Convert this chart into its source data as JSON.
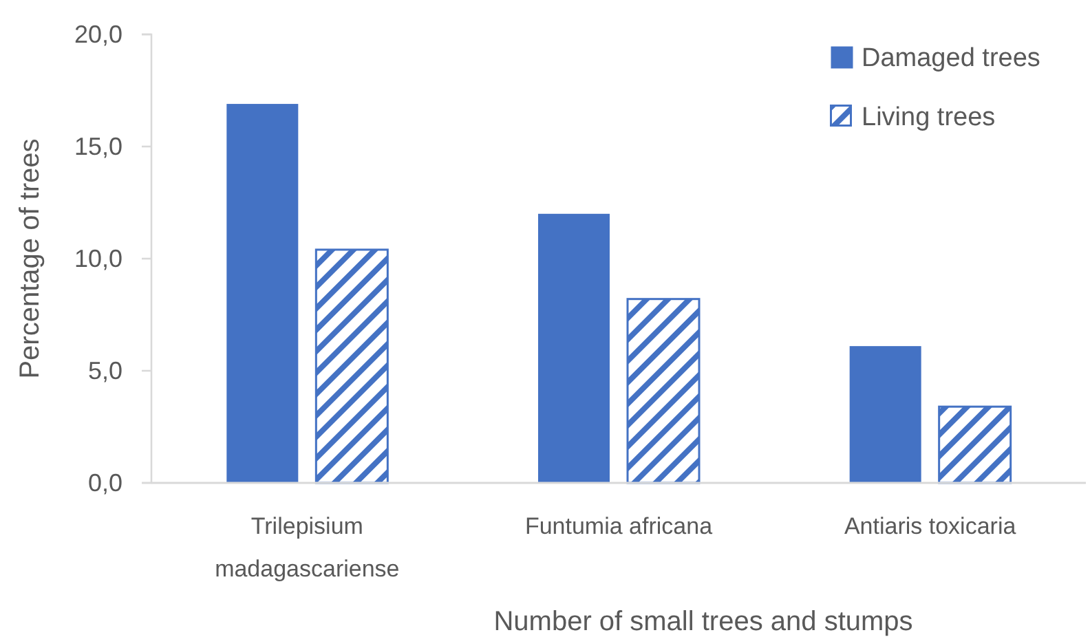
{
  "chart_data": {
    "type": "bar",
    "xlabel": "Number of small trees and stumps",
    "ylabel": "Percentage of trees",
    "categories": [
      "Trilepisium madagascariense",
      "Funtumia africana",
      "Antiaris toxicaria"
    ],
    "series": [
      {
        "name": "Damaged trees",
        "color": "#4472c4",
        "values": [
          16.9,
          12.0,
          6.1
        ]
      },
      {
        "name": "Living trees",
        "color": "#4472c4",
        "values": [
          10.4,
          8.2,
          3.4
        ]
      }
    ],
    "ylim": [
      0,
      20
    ],
    "yticks": [
      {
        "value": 0,
        "label": "0,0"
      },
      {
        "value": 5,
        "label": "5,0"
      },
      {
        "value": 10,
        "label": "10,0"
      },
      {
        "value": 15,
        "label": "15,0"
      },
      {
        "value": 20,
        "label": "20,0"
      }
    ],
    "grid": false,
    "legend": "top right"
  }
}
